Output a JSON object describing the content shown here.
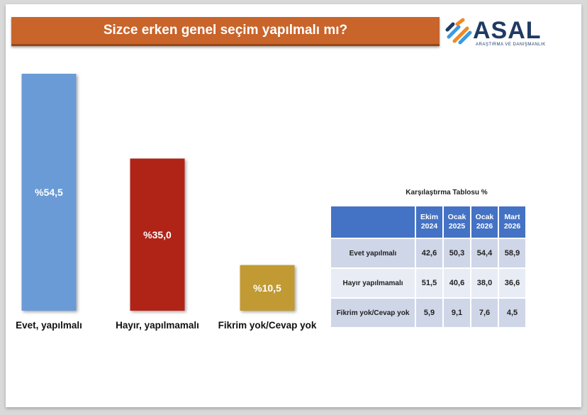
{
  "header": {
    "title": "Sizce erken genel seçim yapılmalı mı?"
  },
  "logo": {
    "name": "ASAL",
    "subtitle": "ARAŞTIRMA VE DANIŞMANLIK"
  },
  "chart_data": {
    "type": "bar",
    "categories": [
      "Evet, yapılmalı",
      "Hayır, yapılmamalı",
      "Fikrim yok/Cevap yok"
    ],
    "values": [
      54.5,
      35.0,
      10.5
    ],
    "value_labels": [
      "%54,5",
      "%35,0",
      "%10,5"
    ],
    "colors": [
      "#6a9bd6",
      "#b02418",
      "#c19a33"
    ],
    "title": "Sizce erken genel seçim yapılmalı mı?",
    "ylim": [
      0,
      54.5
    ],
    "grid": false,
    "legend": "none"
  },
  "comparison_table": {
    "caption": "Karşılaştırma Tablosu %",
    "columns": [
      {
        "line1": "Ekim",
        "line2": "2024"
      },
      {
        "line1": "Ocak",
        "line2": "2025"
      },
      {
        "line1": "Ocak",
        "line2": "2026"
      },
      {
        "line1": "Mart",
        "line2": "2026"
      }
    ],
    "rows": [
      {
        "label": "Evet yapılmalı",
        "values": [
          "42,6",
          "50,3",
          "54,4",
          "58,9"
        ]
      },
      {
        "label": "Hayır yapılmamalı",
        "values": [
          "51,5",
          "40,6",
          "38,0",
          "36,6"
        ]
      },
      {
        "label": "Fikrim yok/Cevap yok",
        "values": [
          "5,9",
          "9,1",
          "7,6",
          "4,5"
        ]
      }
    ]
  }
}
